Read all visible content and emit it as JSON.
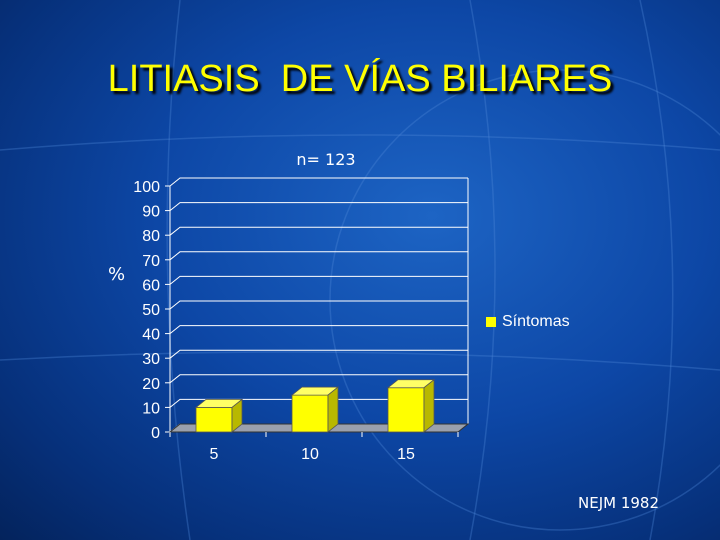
{
  "slide": {
    "title": "LITIASIS  DE VÍAS BILIARES",
    "source": "NEJM 1982"
  },
  "colors": {
    "title": "#ffff00",
    "bar": "#ffff00",
    "text": "#ffffff",
    "gridline": "#ffffff"
  },
  "chart_data": {
    "type": "bar",
    "title": "n= 123",
    "ylabel": "%",
    "xlabel": "",
    "categories": [
      "5",
      "10",
      "15"
    ],
    "series": [
      {
        "name": "Síntomas",
        "values": [
          10,
          15,
          18
        ]
      }
    ],
    "ylim": [
      0,
      100
    ],
    "yticks": [
      "0",
      "10",
      "20",
      "30",
      "40",
      "50",
      "60",
      "70",
      "80",
      "90",
      "100"
    ],
    "grid": true,
    "legend": "right",
    "style": "3d"
  }
}
